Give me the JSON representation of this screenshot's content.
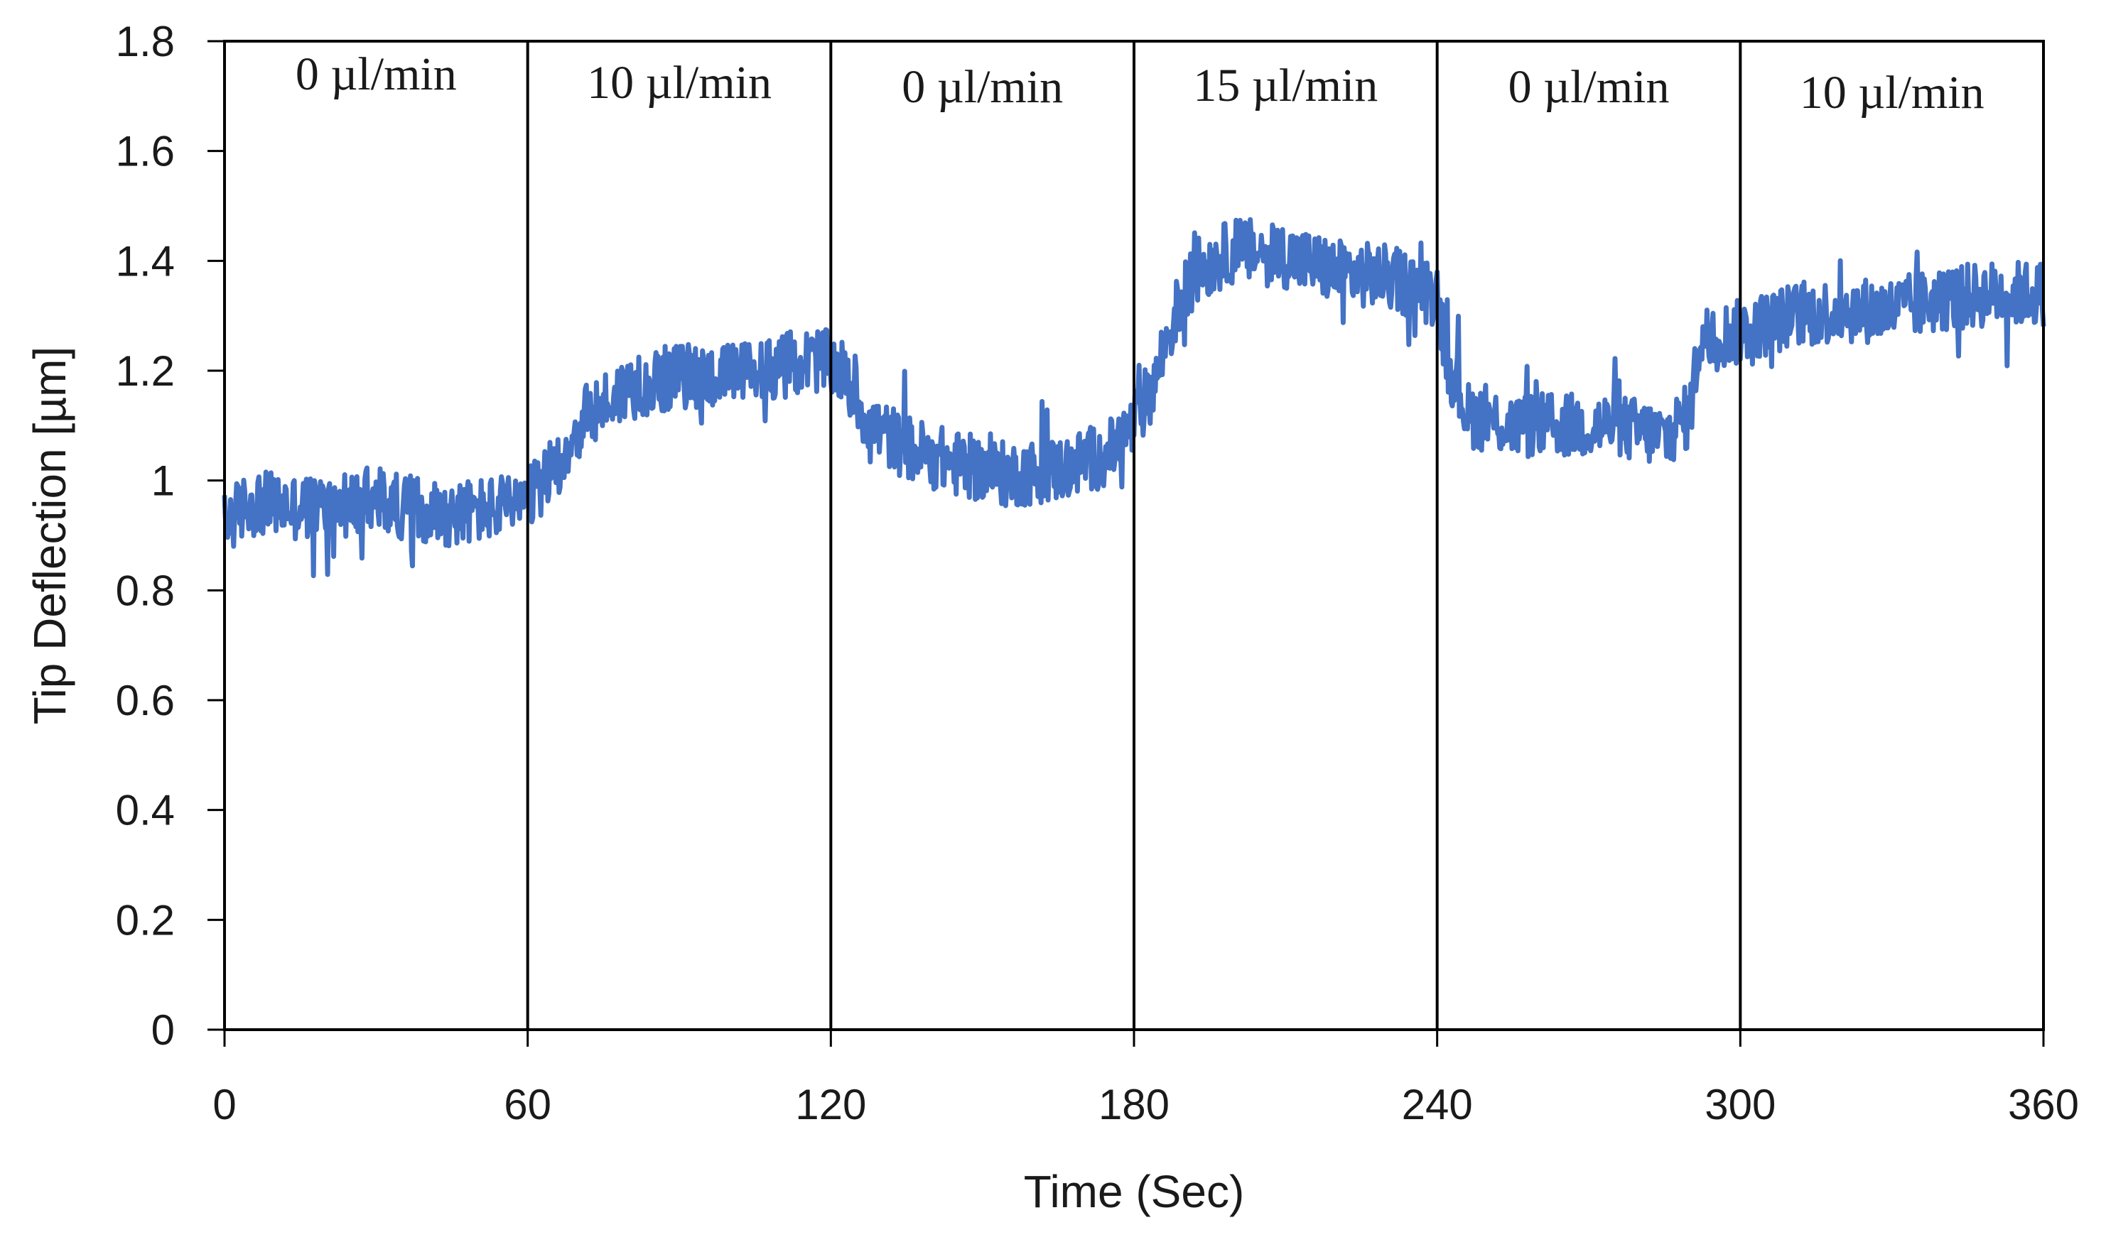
{
  "chart_data": {
    "type": "line",
    "title": "",
    "xlabel": "Time (Sec)",
    "ylabel": "Tip Deflection [µm]",
    "xlim": [
      0,
      360
    ],
    "ylim": [
      0,
      1.8
    ],
    "x_ticks": [
      0,
      60,
      120,
      180,
      240,
      300,
      360
    ],
    "y_ticks": [
      0,
      0.2,
      0.4,
      0.6,
      0.8,
      1,
      1.2,
      1.4,
      1.6,
      1.8
    ],
    "grid": false,
    "legend": "none",
    "segment_boundaries": [
      60,
      120,
      180,
      240,
      300
    ],
    "segments": [
      {
        "label": "0 µl/min",
        "start": 0,
        "end": 60
      },
      {
        "label": "10 µl/min",
        "start": 60,
        "end": 120
      },
      {
        "label": "0 µl/min",
        "start": 120,
        "end": 180
      },
      {
        "label": "15 µl/min",
        "start": 180,
        "end": 240
      },
      {
        "label": "0 µl/min",
        "start": 240,
        "end": 300
      },
      {
        "label": "10 µl/min",
        "start": 300,
        "end": 360
      }
    ],
    "series": [
      {
        "name": "Tip Deflection",
        "color": "#4472C4",
        "noise_amplitude": 0.06,
        "x": [
          0,
          5,
          15,
          30,
          45,
          55,
          60,
          65,
          72,
          80,
          90,
          100,
          110,
          118,
          122,
          128,
          135,
          145,
          155,
          165,
          175,
          180,
          184,
          188,
          192,
          200,
          210,
          220,
          230,
          240,
          242,
          246,
          255,
          265,
          275,
          285,
          290,
          292,
          300,
          310,
          320,
          330,
          340,
          350,
          360
        ],
        "y": [
          0.92,
          0.96,
          0.95,
          0.96,
          0.94,
          0.95,
          0.96,
          1.02,
          1.12,
          1.17,
          1.19,
          1.19,
          1.21,
          1.22,
          1.2,
          1.1,
          1.06,
          1.03,
          1.01,
          1.02,
          1.05,
          1.1,
          1.18,
          1.3,
          1.38,
          1.42,
          1.41,
          1.38,
          1.37,
          1.34,
          1.22,
          1.12,
          1.1,
          1.1,
          1.1,
          1.08,
          1.12,
          1.26,
          1.27,
          1.3,
          1.31,
          1.31,
          1.33,
          1.34,
          1.34
        ]
      }
    ]
  }
}
